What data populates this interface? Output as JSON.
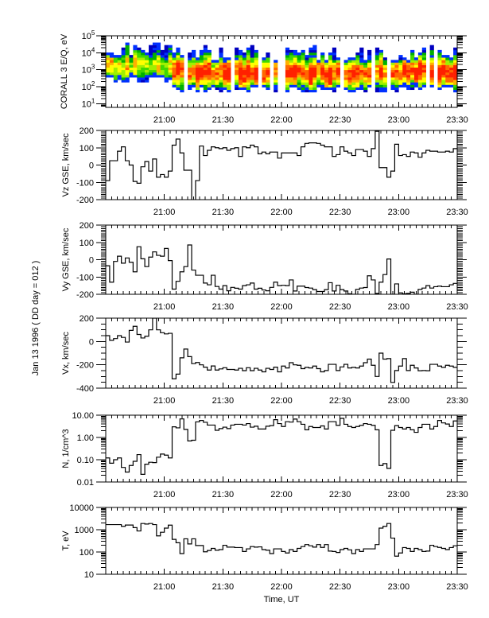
{
  "chart_data": {
    "type": "line",
    "side_label": "Jan 13 1996  ( DD day = 012 )",
    "xlabel": "Time, UT",
    "xlim": [
      "20:30",
      "23:30"
    ],
    "x_ticks": [
      "21:00",
      "21:30",
      "22:00",
      "22:30",
      "23:00",
      "23:30"
    ],
    "bin_minutes": 2,
    "panels": [
      {
        "id": "corall",
        "type": "heatmap",
        "ylabel": "CORALL 3 E/Q, eV",
        "scale": "log",
        "ylim": [
          6,
          100000
        ],
        "yticks": [
          {
            "value": 100000,
            "base": "10",
            "exp": "5"
          },
          {
            "value": 10000,
            "base": "10",
            "exp": "4"
          },
          {
            "value": 1000,
            "base": "10",
            "exp": "3"
          },
          {
            "value": 100,
            "base": "10",
            "exp": "2"
          },
          {
            "value": 10,
            "base": "10",
            "exp": "1"
          }
        ],
        "spectrogram": {
          "colors": [
            "#0000c0",
            "#0030ff",
            "#00b000",
            "#40d800",
            "#a0f000",
            "#ffff00",
            "#ffb000",
            "#ff6800",
            "#ff2000"
          ],
          "segments": [
            {
              "start": "20:30",
              "end": "21:04",
              "emin_eV": 250,
              "emax_eV": 20000,
              "peak_eV": 1500,
              "level": 0.6,
              "gap_fraction": 0.0
            },
            {
              "start": "21:04",
              "end": "23:30",
              "emin_eV": 60,
              "emax_eV": 12000,
              "peak_eV": 700,
              "level": 0.95,
              "gap_fraction": 0.14
            }
          ]
        }
      },
      {
        "id": "vz",
        "ylabel": "Vz GSE, km/sec",
        "scale": "linear",
        "ylim": [
          -200,
          200
        ],
        "minor_step": 10,
        "yticks": [
          {
            "value": 200,
            "label": "200"
          },
          {
            "value": 100,
            "label": "100"
          },
          {
            "value": 0,
            "label": "0"
          },
          {
            "value": -100,
            "label": "-100"
          },
          {
            "value": -200,
            "label": "-200"
          }
        ],
        "values": [
          -90,
          25,
          25,
          80,
          105,
          25,
          0,
          -95,
          -105,
          -10,
          20,
          -35,
          35,
          -70,
          -55,
          -70,
          -35,
          115,
          150,
          70,
          -30,
          -30,
          -215,
          -90,
          110,
          55,
          85,
          105,
          100,
          95,
          100,
          85,
          95,
          100,
          50,
          105,
          100,
          115,
          105,
          65,
          75,
          65,
          75,
          75,
          40,
          70,
          70,
          70,
          70,
          55,
          105,
          125,
          128,
          128,
          125,
          115,
          105,
          105,
          50,
          60,
          105,
          80,
          70,
          55,
          90,
          90,
          80,
          50,
          95,
          195,
          -15,
          -15,
          -70,
          -35,
          120,
          55,
          60,
          50,
          75,
          70,
          45,
          70,
          85,
          80,
          80,
          75,
          75,
          80,
          75,
          95
        ]
      },
      {
        "id": "vy",
        "ylabel": "Vy GSE, km/sec",
        "scale": "linear",
        "ylim": [
          -200,
          200
        ],
        "minor_step": 10,
        "yticks": [
          {
            "value": 200,
            "label": "200"
          },
          {
            "value": 100,
            "label": "100"
          },
          {
            "value": 0,
            "label": "0"
          },
          {
            "value": -100,
            "label": "-100"
          },
          {
            "value": -200,
            "label": "-200"
          }
        ],
        "values": [
          -35,
          -130,
          -10,
          20,
          -20,
          10,
          -15,
          -70,
          75,
          5,
          -40,
          15,
          45,
          25,
          20,
          65,
          -5,
          -170,
          -125,
          -70,
          -40,
          85,
          -60,
          -90,
          -90,
          -135,
          -145,
          -90,
          -155,
          -170,
          -150,
          -180,
          -160,
          -165,
          -170,
          -150,
          -145,
          -135,
          -170,
          -165,
          -175,
          -180,
          -160,
          -130,
          -150,
          -148,
          -150,
          -117,
          -181,
          -153,
          -153,
          -161,
          -164,
          -173,
          -184,
          -184,
          -173,
          -133,
          -181,
          -148,
          -173,
          -181,
          -197,
          -200,
          -172,
          -164,
          -161,
          -93,
          -117,
          -195,
          -130,
          -86,
          4,
          -200,
          -140,
          -192,
          -197,
          -195,
          -188,
          -200,
          -172,
          -164,
          -150,
          -164,
          -156,
          -153,
          -156,
          -156,
          -145,
          -137
        ]
      },
      {
        "id": "vx",
        "ylabel": "Vx, km/sec",
        "scale": "linear",
        "ylim": [
          -400,
          200
        ],
        "minor_step": 50,
        "yticks": [
          {
            "value": 200,
            "label": "200"
          },
          {
            "value": 0,
            "label": "0"
          },
          {
            "value": -200,
            "label": "-200"
          },
          {
            "value": -400,
            "label": "-400"
          }
        ],
        "values": [
          50,
          10,
          25,
          50,
          35,
          -5,
          95,
          130,
          60,
          30,
          45,
          100,
          200,
          100,
          75,
          65,
          70,
          -320,
          -280,
          -140,
          -65,
          -130,
          -190,
          -180,
          -200,
          -220,
          -245,
          -210,
          -245,
          -235,
          -225,
          -240,
          -240,
          -245,
          -230,
          -250,
          -225,
          -250,
          -230,
          -245,
          -260,
          -230,
          -240,
          -220,
          -260,
          -211,
          -227,
          -182,
          -200,
          -204,
          -233,
          -222,
          -227,
          -211,
          -233,
          -260,
          -249,
          -196,
          -196,
          -249,
          -218,
          -196,
          -227,
          -222,
          -227,
          -211,
          -182,
          -151,
          -204,
          -300,
          -100,
          -151,
          -147,
          -351,
          -249,
          -211,
          -147,
          -249,
          -204,
          -227,
          -251,
          -249,
          -251,
          -196,
          -196,
          -211,
          -222,
          -204,
          -211,
          -222
        ]
      },
      {
        "id": "n",
        "ylabel": "N, 1/cm^3",
        "scale": "log",
        "ylim": [
          0.01,
          10
        ],
        "yticks": [
          {
            "value": 10,
            "label": "10.00"
          },
          {
            "value": 1,
            "label": "1.00"
          },
          {
            "value": 0.1,
            "label": "0.10"
          },
          {
            "value": 0.01,
            "label": "0.01"
          }
        ],
        "values": [
          0.12,
          0.07,
          0.1,
          0.12,
          0.045,
          0.028,
          0.055,
          0.085,
          0.17,
          0.022,
          0.063,
          0.077,
          0.074,
          0.13,
          0.18,
          0.16,
          0.12,
          3.0,
          2.7,
          6.8,
          2.3,
          0.7,
          0.75,
          5.0,
          5.8,
          4.8,
          3.6,
          3.6,
          2.1,
          2.5,
          2.9,
          2.5,
          3.6,
          3.9,
          3.9,
          3.6,
          4.2,
          2.9,
          3.2,
          2.4,
          2.4,
          3.2,
          3.4,
          6.3,
          4.2,
          3.1,
          5.1,
          4.9,
          6.7,
          5.1,
          3.9,
          2.2,
          3.1,
          2.8,
          2.8,
          3.3,
          2.4,
          5.1,
          5.1,
          3.5,
          7.2,
          3.9,
          3.1,
          2.8,
          3.1,
          3.5,
          4.2,
          3.9,
          3.5,
          2.2,
          0.055,
          0.067,
          0.041,
          2.1,
          3.4,
          2.8,
          2.4,
          2.8,
          2.2,
          1.7,
          2.8,
          3.9,
          3.9,
          2.4,
          3.1,
          5.8,
          4.5,
          4.0,
          3.1,
          5.5
        ]
      },
      {
        "id": "t",
        "ylabel": "T, eV",
        "scale": "log",
        "ylim": [
          10,
          10000
        ],
        "yticks": [
          {
            "value": 10000,
            "label": "10000"
          },
          {
            "value": 1000,
            "label": "1000"
          },
          {
            "value": 100,
            "label": "100"
          },
          {
            "value": 10,
            "label": "10"
          }
        ],
        "values": [
          1700,
          1700,
          1700,
          1700,
          1420,
          1620,
          1620,
          1240,
          880,
          1900,
          1800,
          1900,
          1700,
          530,
          770,
          1180,
          1600,
          370,
          260,
          85,
          390,
          230,
          390,
          195,
          195,
          102,
          117,
          145,
          120,
          128,
          200,
          165,
          165,
          158,
          158,
          105,
          138,
          175,
          165,
          170,
          128,
          120,
          85,
          138,
          138,
          105,
          90,
          128,
          105,
          145,
          175,
          215,
          190,
          165,
          215,
          160,
          215,
          110,
          105,
          95,
          128,
          145,
          125,
          85,
          128,
          105,
          138,
          138,
          138,
          215,
          1180,
          1420,
          1900,
          420,
          65,
          90,
          158,
          145,
          105,
          145,
          128,
          105,
          110,
          200,
          175,
          160,
          145,
          128,
          158,
          190
        ]
      }
    ]
  }
}
